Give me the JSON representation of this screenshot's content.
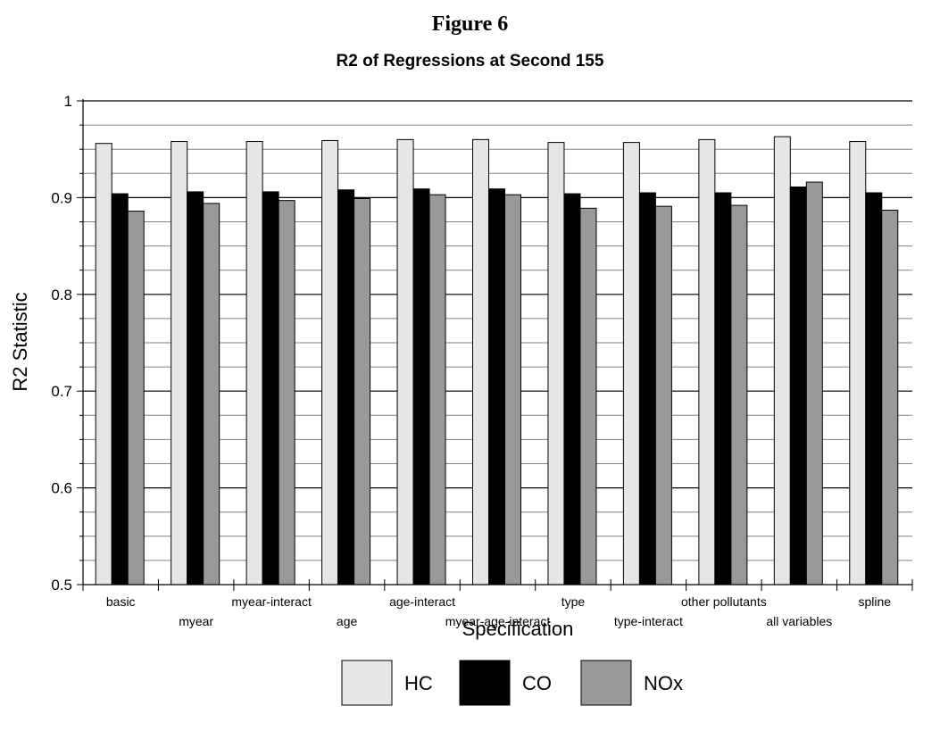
{
  "figure_label": "Figure 6",
  "chart_data": {
    "type": "bar",
    "title": "R2 of Regressions at Second 155",
    "xlabel": "Specification",
    "ylabel": "R2 Statistic",
    "ylim": [
      0.5,
      1.0
    ],
    "yticks": [
      0.5,
      0.6,
      0.7,
      0.8,
      0.9,
      1
    ],
    "ytick_labels": [
      "0.5",
      "0.6",
      "0.7",
      "0.8",
      "0.9",
      "1"
    ],
    "minor_grid_step": 0.025,
    "grid": true,
    "legend_position": "bottom",
    "categories": [
      "basic",
      "myear",
      "myear-interact",
      "age",
      "age-interact",
      "myear-age-interact",
      "type",
      "type-interact",
      "other pollutants",
      "all variables",
      "spline"
    ],
    "series": [
      {
        "name": "HC",
        "color": "#e6e6e6",
        "values": [
          0.956,
          0.958,
          0.958,
          0.959,
          0.96,
          0.96,
          0.957,
          0.957,
          0.96,
          0.963,
          0.958
        ]
      },
      {
        "name": "CO",
        "color": "#000000",
        "values": [
          0.904,
          0.906,
          0.906,
          0.908,
          0.909,
          0.909,
          0.904,
          0.905,
          0.905,
          0.911,
          0.905
        ]
      },
      {
        "name": "NOx",
        "color": "#999999",
        "values": [
          0.886,
          0.894,
          0.897,
          0.899,
          0.903,
          0.903,
          0.889,
          0.891,
          0.892,
          0.916,
          0.887
        ]
      }
    ]
  }
}
